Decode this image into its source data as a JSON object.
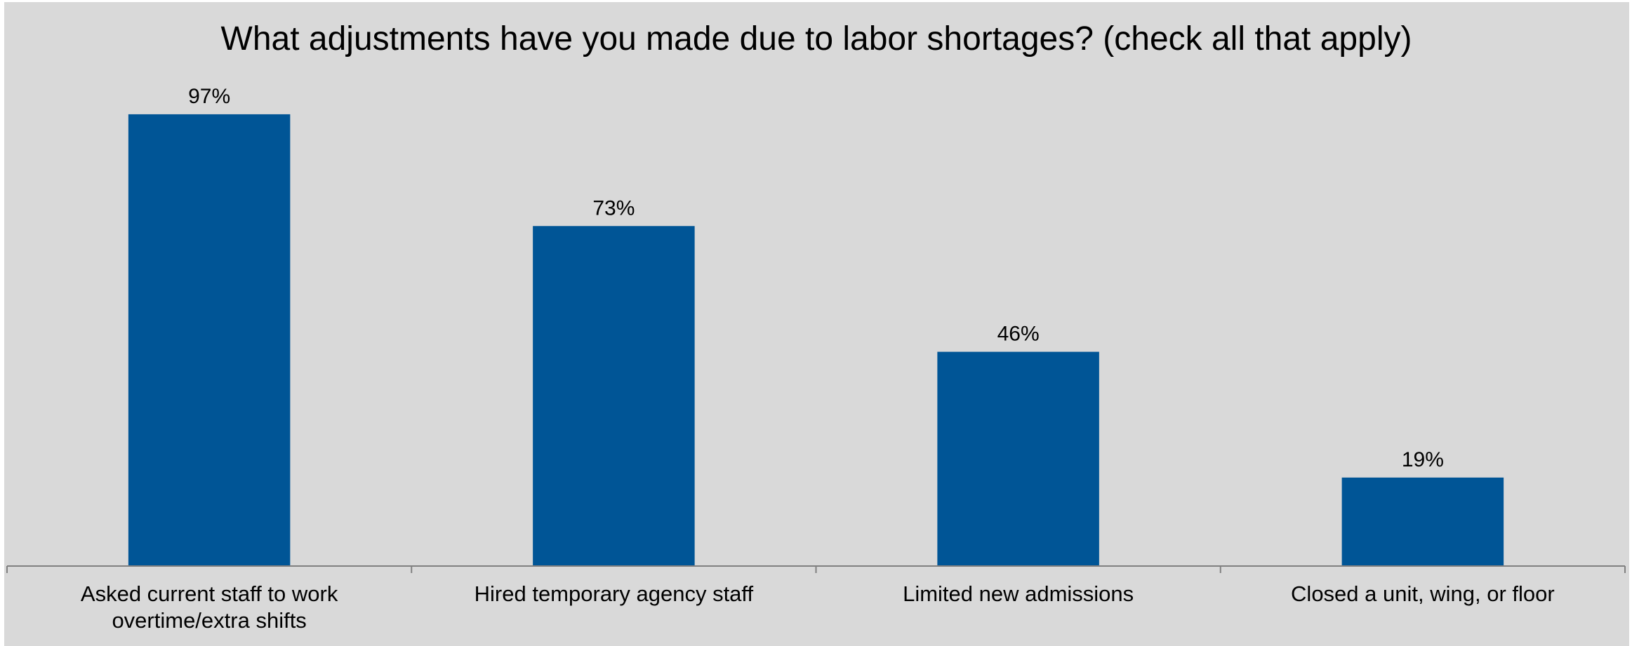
{
  "chart_data": {
    "type": "bar",
    "title": "What adjustments have you made due to labor shortages? (check all that apply)",
    "categories": [
      [
        "Asked current staff to work",
        "overtime/extra shifts"
      ],
      [
        "Hired temporary agency staff"
      ],
      [
        "Limited new admissions"
      ],
      [
        "Closed a unit, wing, or floor"
      ]
    ],
    "values": [
      97,
      73,
      46,
      19
    ],
    "value_labels": [
      "97%",
      "73%",
      "46%",
      "19%"
    ],
    "xlabel": "",
    "ylabel": "",
    "ylim": [
      0,
      100
    ],
    "grid": false,
    "legend": "none",
    "colors": {
      "bar": "#005596",
      "background": "#d9d9d9",
      "axis": "#808080",
      "text": "#000000"
    }
  }
}
